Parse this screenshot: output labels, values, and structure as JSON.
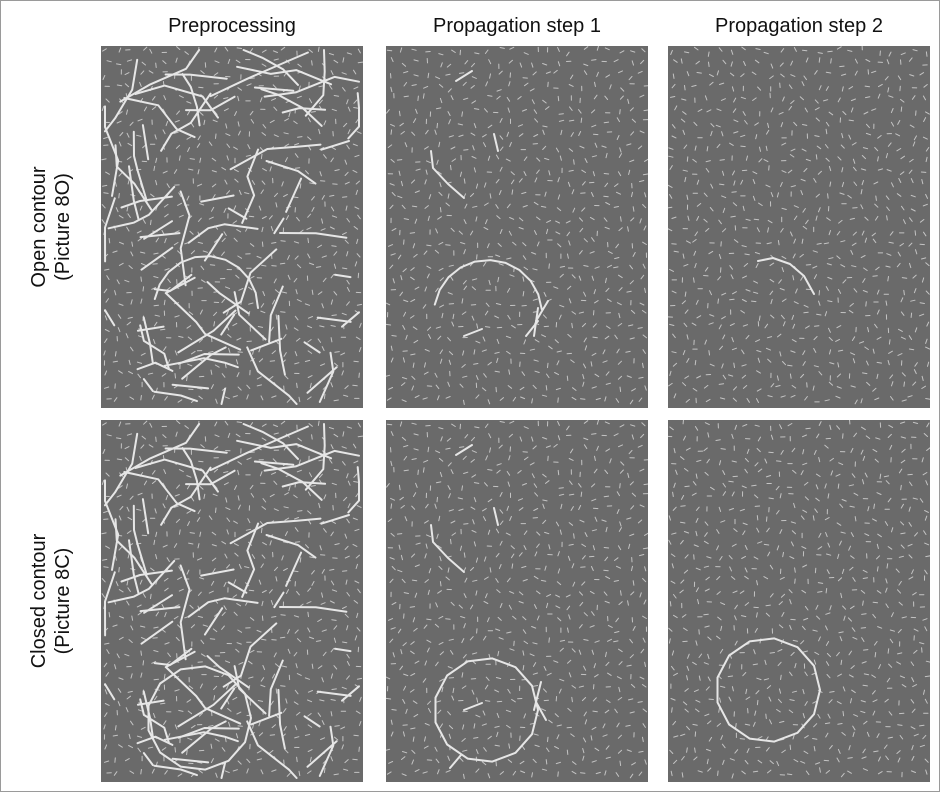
{
  "columns": [
    {
      "title": "Preprocessing"
    },
    {
      "title": "Propagation step 1"
    },
    {
      "title": "Propagation step 2"
    }
  ],
  "rows": [
    {
      "label_line1": "Open contour",
      "label_line2": "(Picture 8O)"
    },
    {
      "label_line1": "Closed contour",
      "label_line2": "(Picture 8C)"
    }
  ],
  "colors": {
    "panel_background": "#6a6a6a",
    "contour": "#e6e6e6",
    "background_elements": "#c4c4c4"
  }
}
